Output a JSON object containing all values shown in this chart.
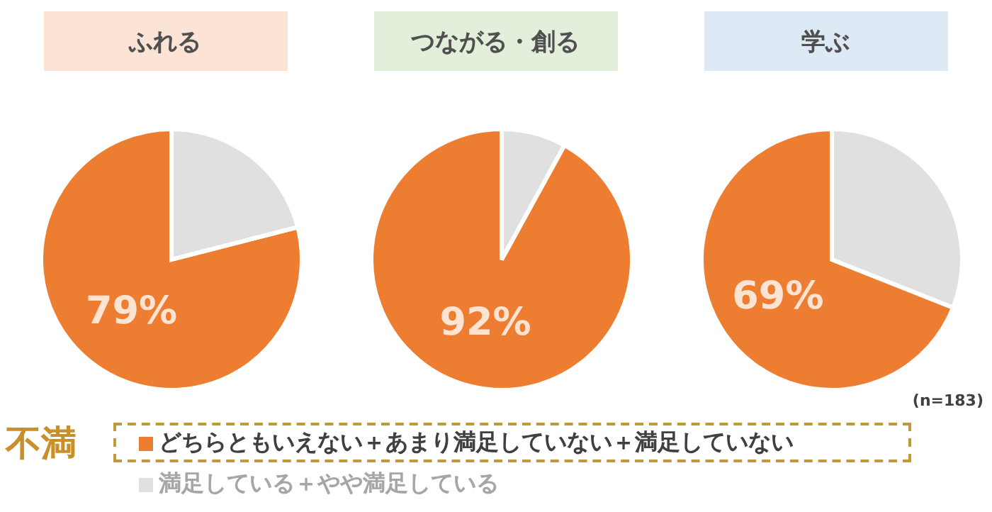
{
  "chart_data": [
    {
      "type": "pie",
      "title": "ふれる",
      "categories": [
        null,
        null
      ],
      "values": [
        79,
        21
      ],
      "colors": [
        "#ed7d31",
        "#e0e0e0"
      ],
      "value_labels": [
        "79%",
        null
      ]
    },
    {
      "type": "pie",
      "title": "つながる・創る",
      "categories": [
        null,
        null
      ],
      "values": [
        92,
        8
      ],
      "colors": [
        "#ed7d31",
        "#e0e0e0"
      ],
      "value_labels": [
        "92%",
        null
      ]
    },
    {
      "type": "pie",
      "title": "学ぶ",
      "categories": [
        "どちらともいえない＋あまり満足していない＋満足していない",
        "満足している＋やや満足している"
      ],
      "values": [
        69,
        31
      ],
      "colors": [
        "#ed7d31",
        "#e0e0e0"
      ],
      "value_labels": [
        "69%",
        null
      ],
      "legend": "bottom",
      "annotations": [
        "(n=183)",
        "不満"
      ]
    }
  ]
}
